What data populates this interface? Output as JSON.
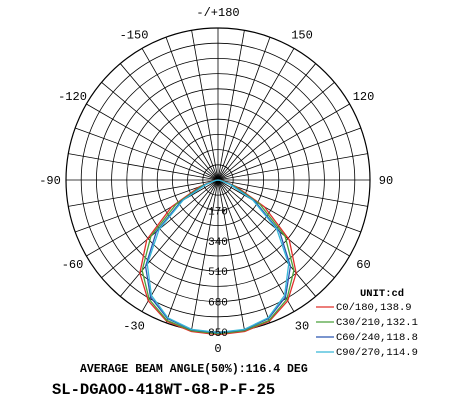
{
  "chart_data": {
    "type": "polar",
    "unit_label": "UNIT:cd",
    "angle_labels": [
      {
        "angle": 180,
        "text": "-/+180"
      },
      {
        "angle": 150,
        "text": "150"
      },
      {
        "angle": -150,
        "text": "-150"
      },
      {
        "angle": 120,
        "text": "120"
      },
      {
        "angle": -120,
        "text": "-120"
      },
      {
        "angle": 90,
        "text": "90"
      },
      {
        "angle": -90,
        "text": "-90"
      },
      {
        "angle": 60,
        "text": "60"
      },
      {
        "angle": -60,
        "text": "-60"
      },
      {
        "angle": 30,
        "text": "30"
      },
      {
        "angle": -30,
        "text": "-30"
      },
      {
        "angle": 0,
        "text": "0"
      }
    ],
    "radial_ticks": [
      170,
      340,
      510,
      680,
      850
    ],
    "radial_max": 850,
    "series": [
      {
        "name": "C0/180,138.9",
        "color": "#e0302a",
        "angles": [
          -90,
          -80,
          -70,
          -60,
          -50,
          -40,
          -30,
          -20,
          -10,
          0,
          10,
          20,
          30,
          40,
          50,
          60,
          70,
          80,
          90
        ],
        "values": [
          0,
          25,
          110,
          300,
          520,
          680,
          780,
          840,
          860,
          865,
          860,
          840,
          780,
          680,
          520,
          300,
          110,
          25,
          0
        ]
      },
      {
        "name": "C30/210,132.1",
        "color": "#4aa03a",
        "angles": [
          -90,
          -80,
          -70,
          -60,
          -50,
          -40,
          -30,
          -20,
          -10,
          0,
          10,
          20,
          30,
          40,
          50,
          60,
          70,
          80,
          90
        ],
        "values": [
          0,
          20,
          95,
          270,
          490,
          660,
          770,
          835,
          855,
          860,
          855,
          835,
          770,
          660,
          490,
          270,
          95,
          20,
          0
        ]
      },
      {
        "name": "C60/240,118.8",
        "color": "#2a56b0",
        "angles": [
          -90,
          -80,
          -70,
          -60,
          -50,
          -40,
          -30,
          -20,
          -10,
          0,
          10,
          20,
          30,
          40,
          50,
          60,
          70,
          80,
          90
        ],
        "values": [
          0,
          15,
          80,
          240,
          450,
          630,
          755,
          825,
          850,
          855,
          850,
          825,
          755,
          630,
          450,
          240,
          80,
          15,
          0
        ]
      },
      {
        "name": "C90/270,114.9",
        "color": "#38b8d8",
        "angles": [
          -90,
          -80,
          -70,
          -60,
          -50,
          -40,
          -30,
          -20,
          -10,
          0,
          10,
          20,
          30,
          40,
          50,
          60,
          70,
          80,
          90
        ],
        "values": [
          0,
          12,
          70,
          225,
          430,
          615,
          745,
          820,
          848,
          852,
          848,
          820,
          745,
          615,
          430,
          225,
          70,
          12,
          0
        ]
      }
    ]
  },
  "caption": "AVERAGE BEAM ANGLE(50%):116.4 DEG",
  "model": "SL-DGAOO-418WT-G8-P-F-25"
}
